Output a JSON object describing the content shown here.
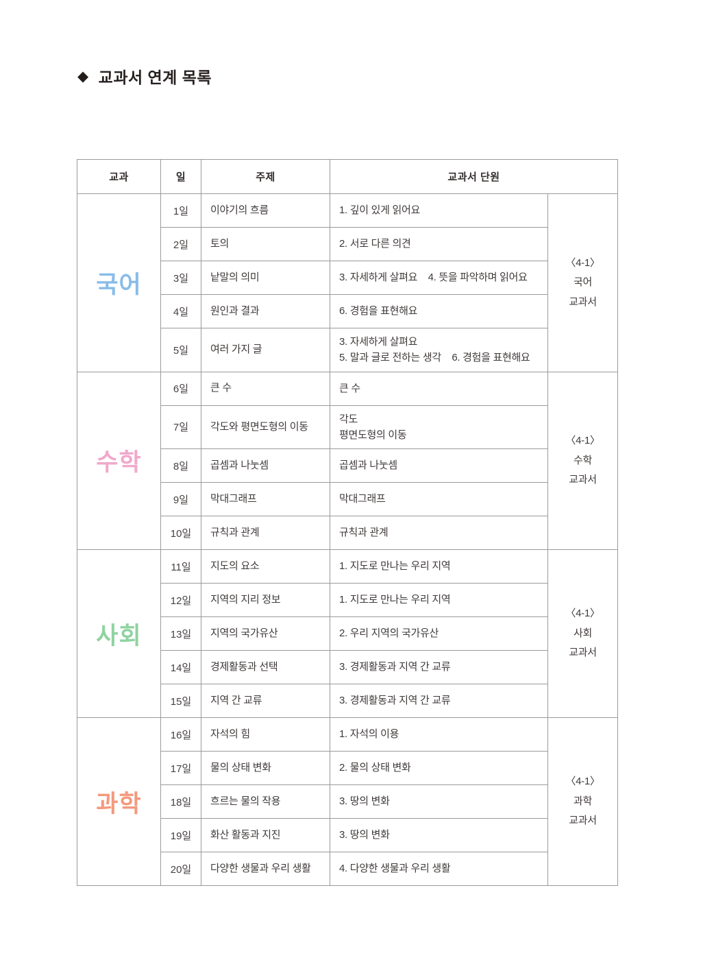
{
  "header": {
    "icon": "◆",
    "title": "교과서 연계 목록"
  },
  "table": {
    "headers": {
      "subject": "교과",
      "day": "일",
      "topic": "주제",
      "unit": "교과서 단원"
    },
    "sections": [
      {
        "subject": "국어",
        "color": "#89bce8",
        "book": [
          "〈4-1〉",
          "국어",
          "교과서"
        ],
        "rows": [
          {
            "day": "1일",
            "topic": "이야기의 흐름",
            "unit": [
              "1. 깊이 있게 읽어요"
            ]
          },
          {
            "day": "2일",
            "topic": "토의",
            "unit": [
              "2. 서로 다른 의견"
            ]
          },
          {
            "day": "3일",
            "topic": "낱말의 의미",
            "unit": [
              "3. 자세하게 살펴요    4. 뜻을 파악하며 읽어요"
            ]
          },
          {
            "day": "4일",
            "topic": "원인과 결과",
            "unit": [
              "6. 경험을 표현해요"
            ]
          },
          {
            "day": "5일",
            "topic": "여러 가지 글",
            "unit": [
              "3. 자세하게 살펴요",
              "5. 말과 글로 전하는 생각    6. 경험을 표현해요"
            ]
          }
        ]
      },
      {
        "subject": "수학",
        "color": "#f0a9cb",
        "book": [
          "〈4-1〉",
          "수학",
          "교과서"
        ],
        "rows": [
          {
            "day": "6일",
            "topic": "큰 수",
            "unit": [
              "큰 수"
            ]
          },
          {
            "day": "7일",
            "topic": "각도와 평면도형의 이동",
            "unit": [
              "각도",
              "평면도형의 이동"
            ]
          },
          {
            "day": "8일",
            "topic": "곱셈과 나눗셈",
            "unit": [
              "곱셈과 나눗셈"
            ]
          },
          {
            "day": "9일",
            "topic": "막대그래프",
            "unit": [
              "막대그래프"
            ]
          },
          {
            "day": "10일",
            "topic": "규칙과 관계",
            "unit": [
              "규칙과 관계"
            ]
          }
        ]
      },
      {
        "subject": "사회",
        "color": "#8fd3a1",
        "book": [
          "〈4-1〉",
          "사회",
          "교과서"
        ],
        "rows": [
          {
            "day": "11일",
            "topic": "지도의 요소",
            "unit": [
              "1. 지도로 만나는 우리 지역"
            ]
          },
          {
            "day": "12일",
            "topic": "지역의 지리 정보",
            "unit": [
              "1. 지도로 만나는 우리 지역"
            ]
          },
          {
            "day": "13일",
            "topic": "지역의 국가유산",
            "unit": [
              "2. 우리 지역의 국가유산"
            ]
          },
          {
            "day": "14일",
            "topic": "경제활동과 선택",
            "unit": [
              "3. 경제활동과 지역 간 교류"
            ]
          },
          {
            "day": "15일",
            "topic": "지역 간 교류",
            "unit": [
              "3. 경제활동과 지역 간 교류"
            ]
          }
        ]
      },
      {
        "subject": "과학",
        "color": "#f5997d",
        "book": [
          "〈4-1〉",
          "과학",
          "교과서"
        ],
        "rows": [
          {
            "day": "16일",
            "topic": "자석의 힘",
            "unit": [
              "1. 자석의 이용"
            ]
          },
          {
            "day": "17일",
            "topic": "물의 상태 변화",
            "unit": [
              "2. 물의 상태 변화"
            ]
          },
          {
            "day": "18일",
            "topic": "흐르는 물의 작용",
            "unit": [
              "3. 땅의 변화"
            ]
          },
          {
            "day": "19일",
            "topic": "화산 활동과 지진",
            "unit": [
              "3. 땅의 변화"
            ]
          },
          {
            "day": "20일",
            "topic": "다양한 생물과 우리 생활",
            "unit": [
              "4. 다양한 생물과 우리 생활"
            ]
          }
        ]
      }
    ]
  }
}
